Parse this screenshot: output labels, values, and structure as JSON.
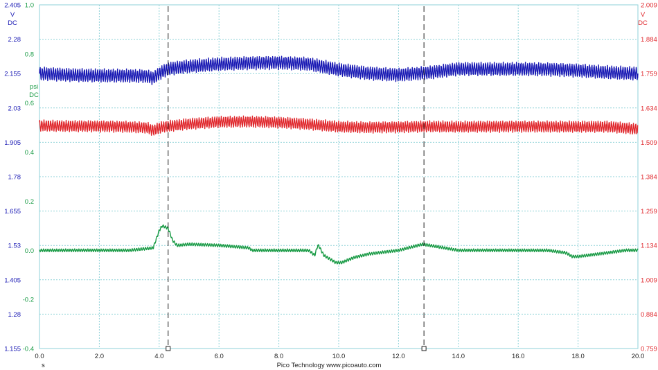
{
  "chart_data": {
    "type": "line",
    "footer": "Pico Technology   www.picoauto.com",
    "x_axis": {
      "unit": "s",
      "range": [
        0,
        20
      ],
      "ticks": [
        "0.0",
        "2.0",
        "4.0",
        "6.0",
        "8.0",
        "10.0",
        "12.0",
        "14.0",
        "16.0",
        "18.0",
        "20.0"
      ]
    },
    "axes": {
      "blue": {
        "unit": "V",
        "coupling": "DC",
        "color": "#1a1ab4",
        "range": [
          1.155,
          2.405
        ],
        "ticks": [
          "2.405",
          "2.28",
          "2.155",
          "2.03",
          "1.905",
          "1.78",
          "1.655",
          "1.53",
          "1.405",
          "1.28",
          "1.155"
        ]
      },
      "red": {
        "unit": "V",
        "coupling": "DC",
        "color": "#e0282d",
        "range": [
          0.759,
          2.009
        ],
        "ticks": [
          "2.009",
          "1.884",
          "1.759",
          "1.634",
          "1.509",
          "1.384",
          "1.259",
          "1.134",
          "1.009",
          "0.884",
          "0.759"
        ]
      },
      "green": {
        "unit": "psi",
        "coupling": "DC",
        "color": "#1a9b46",
        "range": [
          -0.4,
          1.0
        ],
        "ticks": [
          "1.0",
          "0.8",
          "0.6",
          "0.4",
          "0.2",
          "0.0",
          "-0.2",
          "-0.4"
        ]
      }
    },
    "cursors": {
      "times_s": [
        4.3,
        12.85
      ],
      "style": "dashed"
    },
    "grid": true,
    "series": [
      {
        "axis": "blue",
        "color": "#1a1ab4",
        "ripple_amplitude": 0.02,
        "x": [
          0,
          1,
          2,
          3,
          3.6,
          3.8,
          4.0,
          4.3,
          5,
          6,
          7,
          8,
          9,
          10,
          11,
          12,
          13,
          14,
          15,
          16,
          17,
          18,
          19,
          20
        ],
        "y": [
          2.155,
          2.15,
          2.148,
          2.147,
          2.145,
          2.138,
          2.155,
          2.172,
          2.182,
          2.19,
          2.193,
          2.194,
          2.19,
          2.17,
          2.156,
          2.15,
          2.158,
          2.172,
          2.172,
          2.172,
          2.17,
          2.166,
          2.16,
          2.155
        ]
      },
      {
        "axis": "red",
        "color": "#e0282d",
        "ripple_amplitude": 0.017,
        "x": [
          0,
          1,
          2,
          3,
          3.6,
          3.8,
          4.0,
          4.3,
          5,
          6,
          7,
          8,
          9,
          10,
          11,
          12,
          13,
          14,
          15,
          16,
          17,
          18,
          19,
          20
        ],
        "y": [
          1.57,
          1.568,
          1.567,
          1.565,
          1.562,
          1.552,
          1.562,
          1.568,
          1.576,
          1.583,
          1.584,
          1.581,
          1.575,
          1.566,
          1.563,
          1.564,
          1.567,
          1.566,
          1.566,
          1.566,
          1.566,
          1.566,
          1.566,
          1.557
        ]
      },
      {
        "axis": "green",
        "color": "#1a9b46",
        "ripple_amplitude": 0.005,
        "x": [
          0,
          1,
          2,
          3,
          3.8,
          4.0,
          4.1,
          4.3,
          4.45,
          4.6,
          5,
          6,
          7,
          7.1,
          8,
          9,
          9.2,
          9.3,
          9.35,
          9.5,
          9.9,
          10.1,
          10.5,
          11,
          12,
          12.8,
          13.3,
          14,
          15,
          16,
          17,
          17.6,
          17.8,
          18,
          19,
          19.6,
          20
        ],
        "y": [
          0.0,
          0.0,
          0.0,
          0.0,
          0.01,
          0.08,
          0.1,
          0.09,
          0.04,
          0.02,
          0.025,
          0.02,
          0.01,
          0.0,
          0.0,
          0.0,
          -0.02,
          0.02,
          0.015,
          -0.02,
          -0.05,
          -0.05,
          -0.03,
          -0.015,
          0.0,
          0.025,
          0.015,
          0.0,
          0.0,
          0.0,
          0.0,
          -0.01,
          -0.025,
          -0.025,
          -0.01,
          0.0,
          0.0
        ]
      }
    ]
  }
}
